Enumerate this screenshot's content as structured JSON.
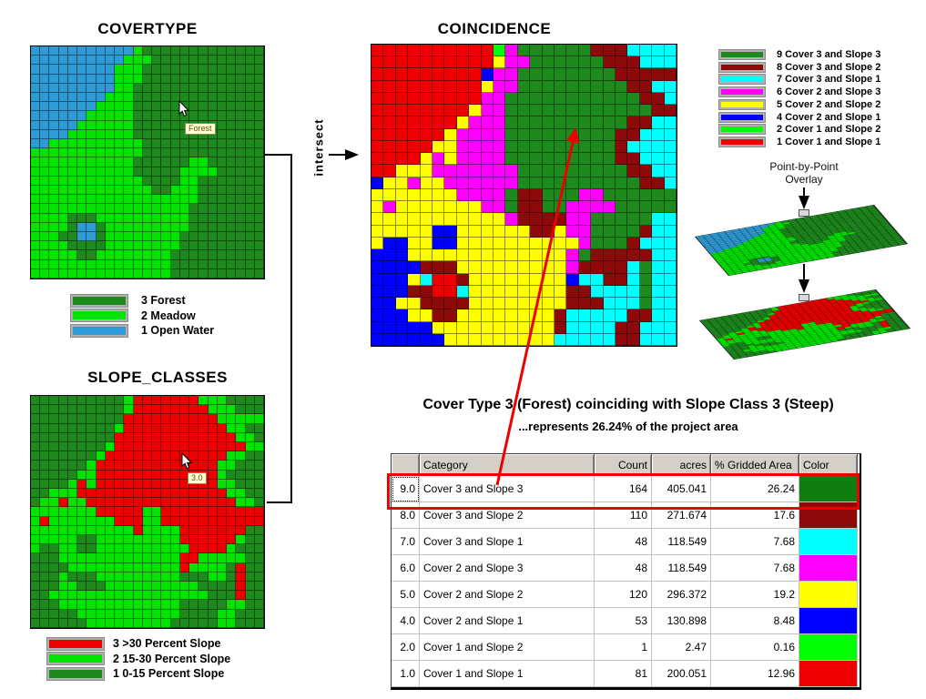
{
  "palette": {
    "cover": {
      "B": "#2f9bd4",
      "M": "#00e400",
      "F": "#1e8a1e"
    },
    "slope": {
      "D": "#1e8a1e",
      "L": "#00e400",
      "R": "#ee0000"
    },
    "coincidence": {
      "1": "#ee0000",
      "2": "#00ff00",
      "3": "#ff8000",
      "4": "#0000ff",
      "5": "#ffff00",
      "6": "#ff00ff",
      "7": "#00ffff",
      "8": "#8e0a0a",
      "9": "#1e8a1e"
    },
    "highlight_red": "#ee0000",
    "connector_black": "#000000"
  },
  "covertype": {
    "title": "COVERTYPE",
    "tooltip": "Forest",
    "legend": [
      {
        "label": "3 Forest",
        "color": "#1e8a1e"
      },
      {
        "label": "2 Meadow",
        "color": "#00e400"
      },
      {
        "label": "1 Open Water",
        "color": "#2f9bd4"
      }
    ],
    "grid": [
      "BBBBBBBBBBBMFFFFFFFFFFFFF",
      "BBBBBBBBBBMMMFFFFFFFFFFFF",
      "BBBBBBBBBMMMFFFFFFFFFFFFF",
      "BBBBBBBBBMMMFFFFFFFFFFFFF",
      "BBBBBBBBBMMFFFFFFFFFFFFFF",
      "BBBBBBBBMMMFFFFFFFFFFFFFF",
      "BBBBBBBMMMMFFFFFFFFFFFFFF",
      "BBBBBBMMMMMFFFFFFFFFFFFFF",
      "BBBBBMMMMMMFFFFFFFFFFFFFF",
      "BBBBMMMMMMMFFFFFFFFFFFFFF",
      "BBMMMMMMMMMMFFFFFFFFFFFFF",
      "MMMMMMMMMMMMFFFFFFFFFFFFF",
      "MMMMMMMMMMMFFFFFFMMFFFFFF",
      "MMMMMMMMMMMFFFFFMMMMFFFFF",
      "MMMMMMMMMMMMFFFFMMFFFFFFF",
      "MMMMMMMMMMMMMFFMMMFFFFFFF",
      "MMMMMMMMMMMMMMMMMMFFFFFFF",
      "MMMMMMMMMMMMMMMMMFFFFFFFF",
      "MMMMFFFMMMMMMMMMMFFFFFFFF",
      "MMMMFBBFMMMMMMMMMFFFFFFFF",
      "MMMFFBBFMMMMMMMMFFFFFFFFF",
      "MMMMFFFFMMMMMMMMFFFFFFFFF",
      "MMMMMFFMMMMMMMMFFFFFFFFFF",
      "MMMMMMMMMMMMMMMFFFFFFFFFF",
      "MMMMMMMMMMMMMMMFFFFFFFFFF"
    ]
  },
  "slope_classes": {
    "title": "SLOPE_CLASSES",
    "tooltip": "3.0",
    "legend": [
      {
        "label": "3 >30 Percent Slope",
        "color": "#ee0000"
      },
      {
        "label": "2 15-30 Percent Slope",
        "color": "#00e400"
      },
      {
        "label": "1 0-15 Percent Slope",
        "color": "#1e8a1e"
      }
    ],
    "grid": [
      "DDDDDDDDDDLRRRRRRRLLLDDDD",
      "DDDDDDDDDDLRRRRRRRRLLLDDD",
      "DDDDDDDDDDRRRRRRRRRRLLLLL",
      "DDDDDDDDDLRRRRRRRRRRRLLDD",
      "DDDDDDDDDRRRRRRRRRRRRRLLD",
      "DDDDDDDDLRRRRRRRRRRRRRRLL",
      "DDDDDDDLRRRRRRRRRRRRRLLDD",
      "DDDDDDLRRRRRRRRRRRRRLLDDD",
      "DDDDDLLRRRRRRRRRRRRRLDDDD",
      "DDDDLRLRRRRRRRRRRRRRLLDDD",
      "DDLLLRRRRRRRRRRRRRRRRLLDD",
      "DLLRLLRRRRRRRRRRRRRRRRLLD",
      "LLLLLLLRRRRRLLRRRRRRRRRRR",
      "LRLLLLLLLRRRLLRRRRRRRRRRR",
      "LLLLLLLLLLLRLLLLRRRRRRRDD",
      "LLLLLDDLLLLLLLLLRRRRRRLDD",
      "LDDLLDDLLLLLLLLLLRRRRLDDD",
      "DDDLLLLLLLLLLLLLRRLLLLLDD",
      "DDDDLLLLLLLLLLLLRLLLLDRDD",
      "DDDLDDDLLLLLLLLLDDDLLDRDD",
      "DDDLLDDDLLLLLLLLLLDDDDRDD",
      "DDLLLLLLLLLLLLLLLLLDDDRDD",
      "DDDLLLLLLLLLLLLLDDDDDLLDD",
      "DDDDDLLLLLLLLLLLDDDDLLDDD",
      "DDDDDDLLLLLLLLLDDDDDLLDDD"
    ]
  },
  "coincidence": {
    "title": "COINCIDENCE",
    "legend": [
      {
        "value": "9",
        "label": "9 Cover 3 and Slope 3",
        "color": "#1e8a1e"
      },
      {
        "value": "8",
        "label": "8 Cover 3 and Slope 2",
        "color": "#8e0a0a"
      },
      {
        "value": "7",
        "label": "7 Cover 3 and Slope 1",
        "color": "#00ffff"
      },
      {
        "value": "6",
        "label": "6 Cover 2 and Slope 3",
        "color": "#ff00ff"
      },
      {
        "value": "5",
        "label": "5 Cover 2 and Slope 2",
        "color": "#ffff00"
      },
      {
        "value": "4",
        "label": "4 Cover 2 and Slope 1",
        "color": "#0000ff"
      },
      {
        "value": "2",
        "label": "2 Cover 1 and Slope 2",
        "color": "#00ff00"
      },
      {
        "value": "1",
        "label": "1 Cover 1 and Slope 1",
        "color": "#ee0000"
      }
    ]
  },
  "intersect": {
    "label": "intersect"
  },
  "overlay": {
    "label_line1": "Point-by-Point",
    "label_line2": "Overlay"
  },
  "caption": {
    "headline": "Cover Type 3 (Forest) coinciding with Slope Class 3 (Steep)",
    "subline": "...represents 26.24% of the project area"
  },
  "table": {
    "headers": [
      "",
      "Category",
      "Count",
      "acres",
      "% Gridded Area",
      "Color"
    ],
    "rows": [
      {
        "id": "9.0",
        "category": "Cover 3 and Slope 3",
        "count": "164",
        "acres": "405.041",
        "pct_gridded_area": "26.24",
        "color": "#0f7d0f",
        "highlighted": true
      },
      {
        "id": "8.0",
        "category": "Cover 3 and Slope 2",
        "count": "110",
        "acres": "271.674",
        "pct_gridded_area": "17.6",
        "color": "#8e0a0a",
        "highlighted": false
      },
      {
        "id": "7.0",
        "category": "Cover 3 and Slope 1",
        "count": "48",
        "acres": "118.549",
        "pct_gridded_area": "7.68",
        "color": "#00ffff",
        "highlighted": false
      },
      {
        "id": "6.0",
        "category": "Cover 2 and Slope 3",
        "count": "48",
        "acres": "118.549",
        "pct_gridded_area": "7.68",
        "color": "#ff00ff",
        "highlighted": false
      },
      {
        "id": "5.0",
        "category": "Cover 2 and Slope 2",
        "count": "120",
        "acres": "296.372",
        "pct_gridded_area": "19.2",
        "color": "#ffff00",
        "highlighted": false
      },
      {
        "id": "4.0",
        "category": "Cover 2 and Slope 1",
        "count": "53",
        "acres": "130.898",
        "pct_gridded_area": "8.48",
        "color": "#0000ff",
        "highlighted": false
      },
      {
        "id": "2.0",
        "category": "Cover 1 and Slope 2",
        "count": "1",
        "acres": "2.47",
        "pct_gridded_area": "0.16",
        "color": "#00ff00",
        "highlighted": false
      },
      {
        "id": "1.0",
        "category": "Cover 1 and Slope 1",
        "count": "81",
        "acres": "200.051",
        "pct_gridded_area": "12.96",
        "color": "#ee0000",
        "highlighted": false
      }
    ]
  }
}
